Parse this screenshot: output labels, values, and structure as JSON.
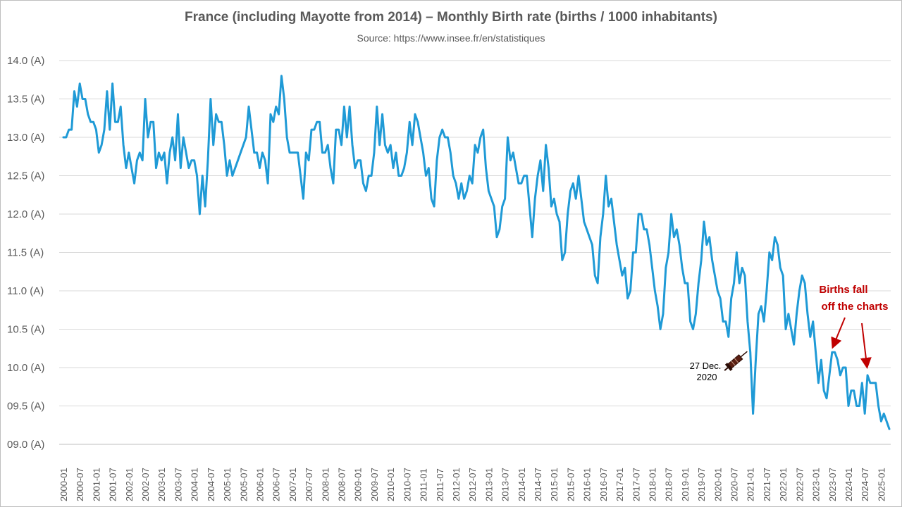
{
  "chart_data": {
    "type": "line",
    "title": "France (including Mayotte from 2014) – Monthly Birth rate (births / 1000 inhabitants)",
    "subtitle": "Source: https://www.insee.fr/en/statistiques",
    "start": "2000-01",
    "ylim": [
      9.0,
      14.0
    ],
    "y_ticks": [
      "14.0 (A)",
      "13.5 (A)",
      "13.0 (A)",
      "12.5 (A)",
      "12.0 (A)",
      "11.5 (A)",
      "11.0 (A)",
      "10.5 (A)",
      "10.0 (A)",
      "09.5 (A)",
      "09.0 (A)"
    ],
    "y_tick_values": [
      14.0,
      13.5,
      13.0,
      12.5,
      12.0,
      11.5,
      11.0,
      10.5,
      10.0,
      9.5,
      9.0
    ],
    "x_ticks": [
      "2000-01",
      "2000-07",
      "2001-01",
      "2001-07",
      "2002-01",
      "2002-07",
      "2003-01",
      "2003-07",
      "2004-01",
      "2004-07",
      "2005-01",
      "2005-07",
      "2006-01",
      "2006-07",
      "2007-01",
      "2007-07",
      "2008-01",
      "2008-07",
      "2009-01",
      "2009-07",
      "2010-01",
      "2010-07",
      "2011-01",
      "2011-07",
      "2012-01",
      "2012-07",
      "2013-01",
      "2013-07",
      "2014-01",
      "2014-07",
      "2015-01",
      "2015-07",
      "2016-01",
      "2016-07",
      "2017-01",
      "2017-07",
      "2018-01",
      "2018-07",
      "2019-01",
      "2019-07",
      "2020-01",
      "2020-07",
      "2021-01",
      "2021-07",
      "2022-01",
      "2022-07",
      "2023-01",
      "2023-07",
      "2024-01",
      "2024-07",
      "2025-01"
    ],
    "grid": true,
    "line_color": "#1f9ad6",
    "series": [
      {
        "values": [
          13.0,
          13.0,
          13.1,
          13.1,
          13.6,
          13.4,
          13.7,
          13.5,
          13.5,
          13.3,
          13.2,
          13.2,
          13.1,
          12.8,
          12.9,
          13.1,
          13.6,
          13.1,
          13.7,
          13.2,
          13.2,
          13.4,
          12.9,
          12.6,
          12.8,
          12.6,
          12.4,
          12.7,
          12.8,
          12.7,
          13.5,
          13.0,
          13.2,
          13.2,
          12.6,
          12.8,
          12.7,
          12.8,
          12.4,
          12.8,
          13.0,
          12.7,
          13.3,
          12.6,
          13.0,
          12.8,
          12.6,
          12.7,
          12.7,
          12.5,
          12.0,
          12.5,
          12.1,
          12.7,
          13.5,
          12.9,
          13.3,
          13.2,
          13.2,
          12.9,
          12.5,
          12.7,
          12.5,
          12.6,
          12.7,
          12.8,
          12.9,
          13.0,
          13.4,
          13.1,
          12.8,
          12.8,
          12.6,
          12.8,
          12.7,
          12.4,
          13.3,
          13.2,
          13.4,
          13.3,
          13.8,
          13.5,
          13.0,
          12.8,
          12.8,
          12.8,
          12.8,
          12.5,
          12.2,
          12.8,
          12.7,
          13.1,
          13.1,
          13.2,
          13.2,
          12.8,
          12.8,
          12.9,
          12.6,
          12.4,
          13.1,
          13.1,
          12.9,
          13.4,
          13.0,
          13.4,
          12.9,
          12.6,
          12.7,
          12.7,
          12.4,
          12.3,
          12.5,
          12.5,
          12.8,
          13.4,
          12.9,
          13.3,
          12.9,
          12.8,
          12.9,
          12.6,
          12.8,
          12.5,
          12.5,
          12.6,
          12.8,
          13.2,
          12.9,
          13.3,
          13.2,
          13.0,
          12.8,
          12.5,
          12.6,
          12.2,
          12.1,
          12.7,
          13.0,
          13.1,
          13.0,
          13.0,
          12.8,
          12.5,
          12.4,
          12.2,
          12.4,
          12.2,
          12.3,
          12.5,
          12.4,
          12.9,
          12.8,
          13.0,
          13.1,
          12.6,
          12.3,
          12.2,
          12.1,
          11.7,
          11.8,
          12.1,
          12.2,
          13.0,
          12.7,
          12.8,
          12.6,
          12.4,
          12.4,
          12.5,
          12.5,
          12.1,
          11.7,
          12.2,
          12.5,
          12.7,
          12.3,
          12.9,
          12.6,
          12.1,
          12.2,
          12.0,
          11.9,
          11.4,
          11.5,
          12.0,
          12.3,
          12.4,
          12.2,
          12.5,
          12.2,
          11.9,
          11.8,
          11.7,
          11.6,
          11.2,
          11.1,
          11.7,
          12.0,
          12.5,
          12.1,
          12.2,
          11.9,
          11.6,
          11.4,
          11.2,
          11.3,
          10.9,
          11.0,
          11.5,
          11.5,
          12.0,
          12.0,
          11.8,
          11.8,
          11.6,
          11.3,
          11.0,
          10.8,
          10.5,
          10.7,
          11.3,
          11.5,
          12.0,
          11.7,
          11.8,
          11.6,
          11.3,
          11.1,
          11.1,
          10.6,
          10.5,
          10.7,
          11.1,
          11.4,
          11.9,
          11.6,
          11.7,
          11.4,
          11.2,
          11.0,
          10.9,
          10.6,
          10.6,
          10.4,
          10.9,
          11.1,
          11.5,
          11.1,
          11.3,
          11.2,
          10.6,
          10.2,
          9.4,
          10.1,
          10.7,
          10.8,
          10.6,
          11.0,
          11.5,
          11.4,
          11.7,
          11.6,
          11.3,
          11.2,
          10.5,
          10.7,
          10.5,
          10.3,
          10.7,
          11.0,
          11.2,
          11.1,
          10.7,
          10.4,
          10.6,
          10.2,
          9.8,
          10.1,
          9.7,
          9.6,
          9.9,
          10.2,
          10.2,
          10.1,
          9.9,
          10.0,
          10.0,
          9.5,
          9.7,
          9.7,
          9.5,
          9.5,
          9.8,
          9.4,
          9.9,
          9.8,
          9.8,
          9.8,
          9.5,
          9.3,
          9.4,
          9.3,
          9.2
        ]
      }
    ],
    "annotations": [
      {
        "text_lines": [
          "27 Dec.",
          "2020"
        ],
        "color": "#000000",
        "icon": "syringe-icon"
      },
      {
        "text_lines": [
          "Births fall",
          "off the charts"
        ],
        "color": "#c00000",
        "arrow_color": "#c00000"
      }
    ]
  }
}
